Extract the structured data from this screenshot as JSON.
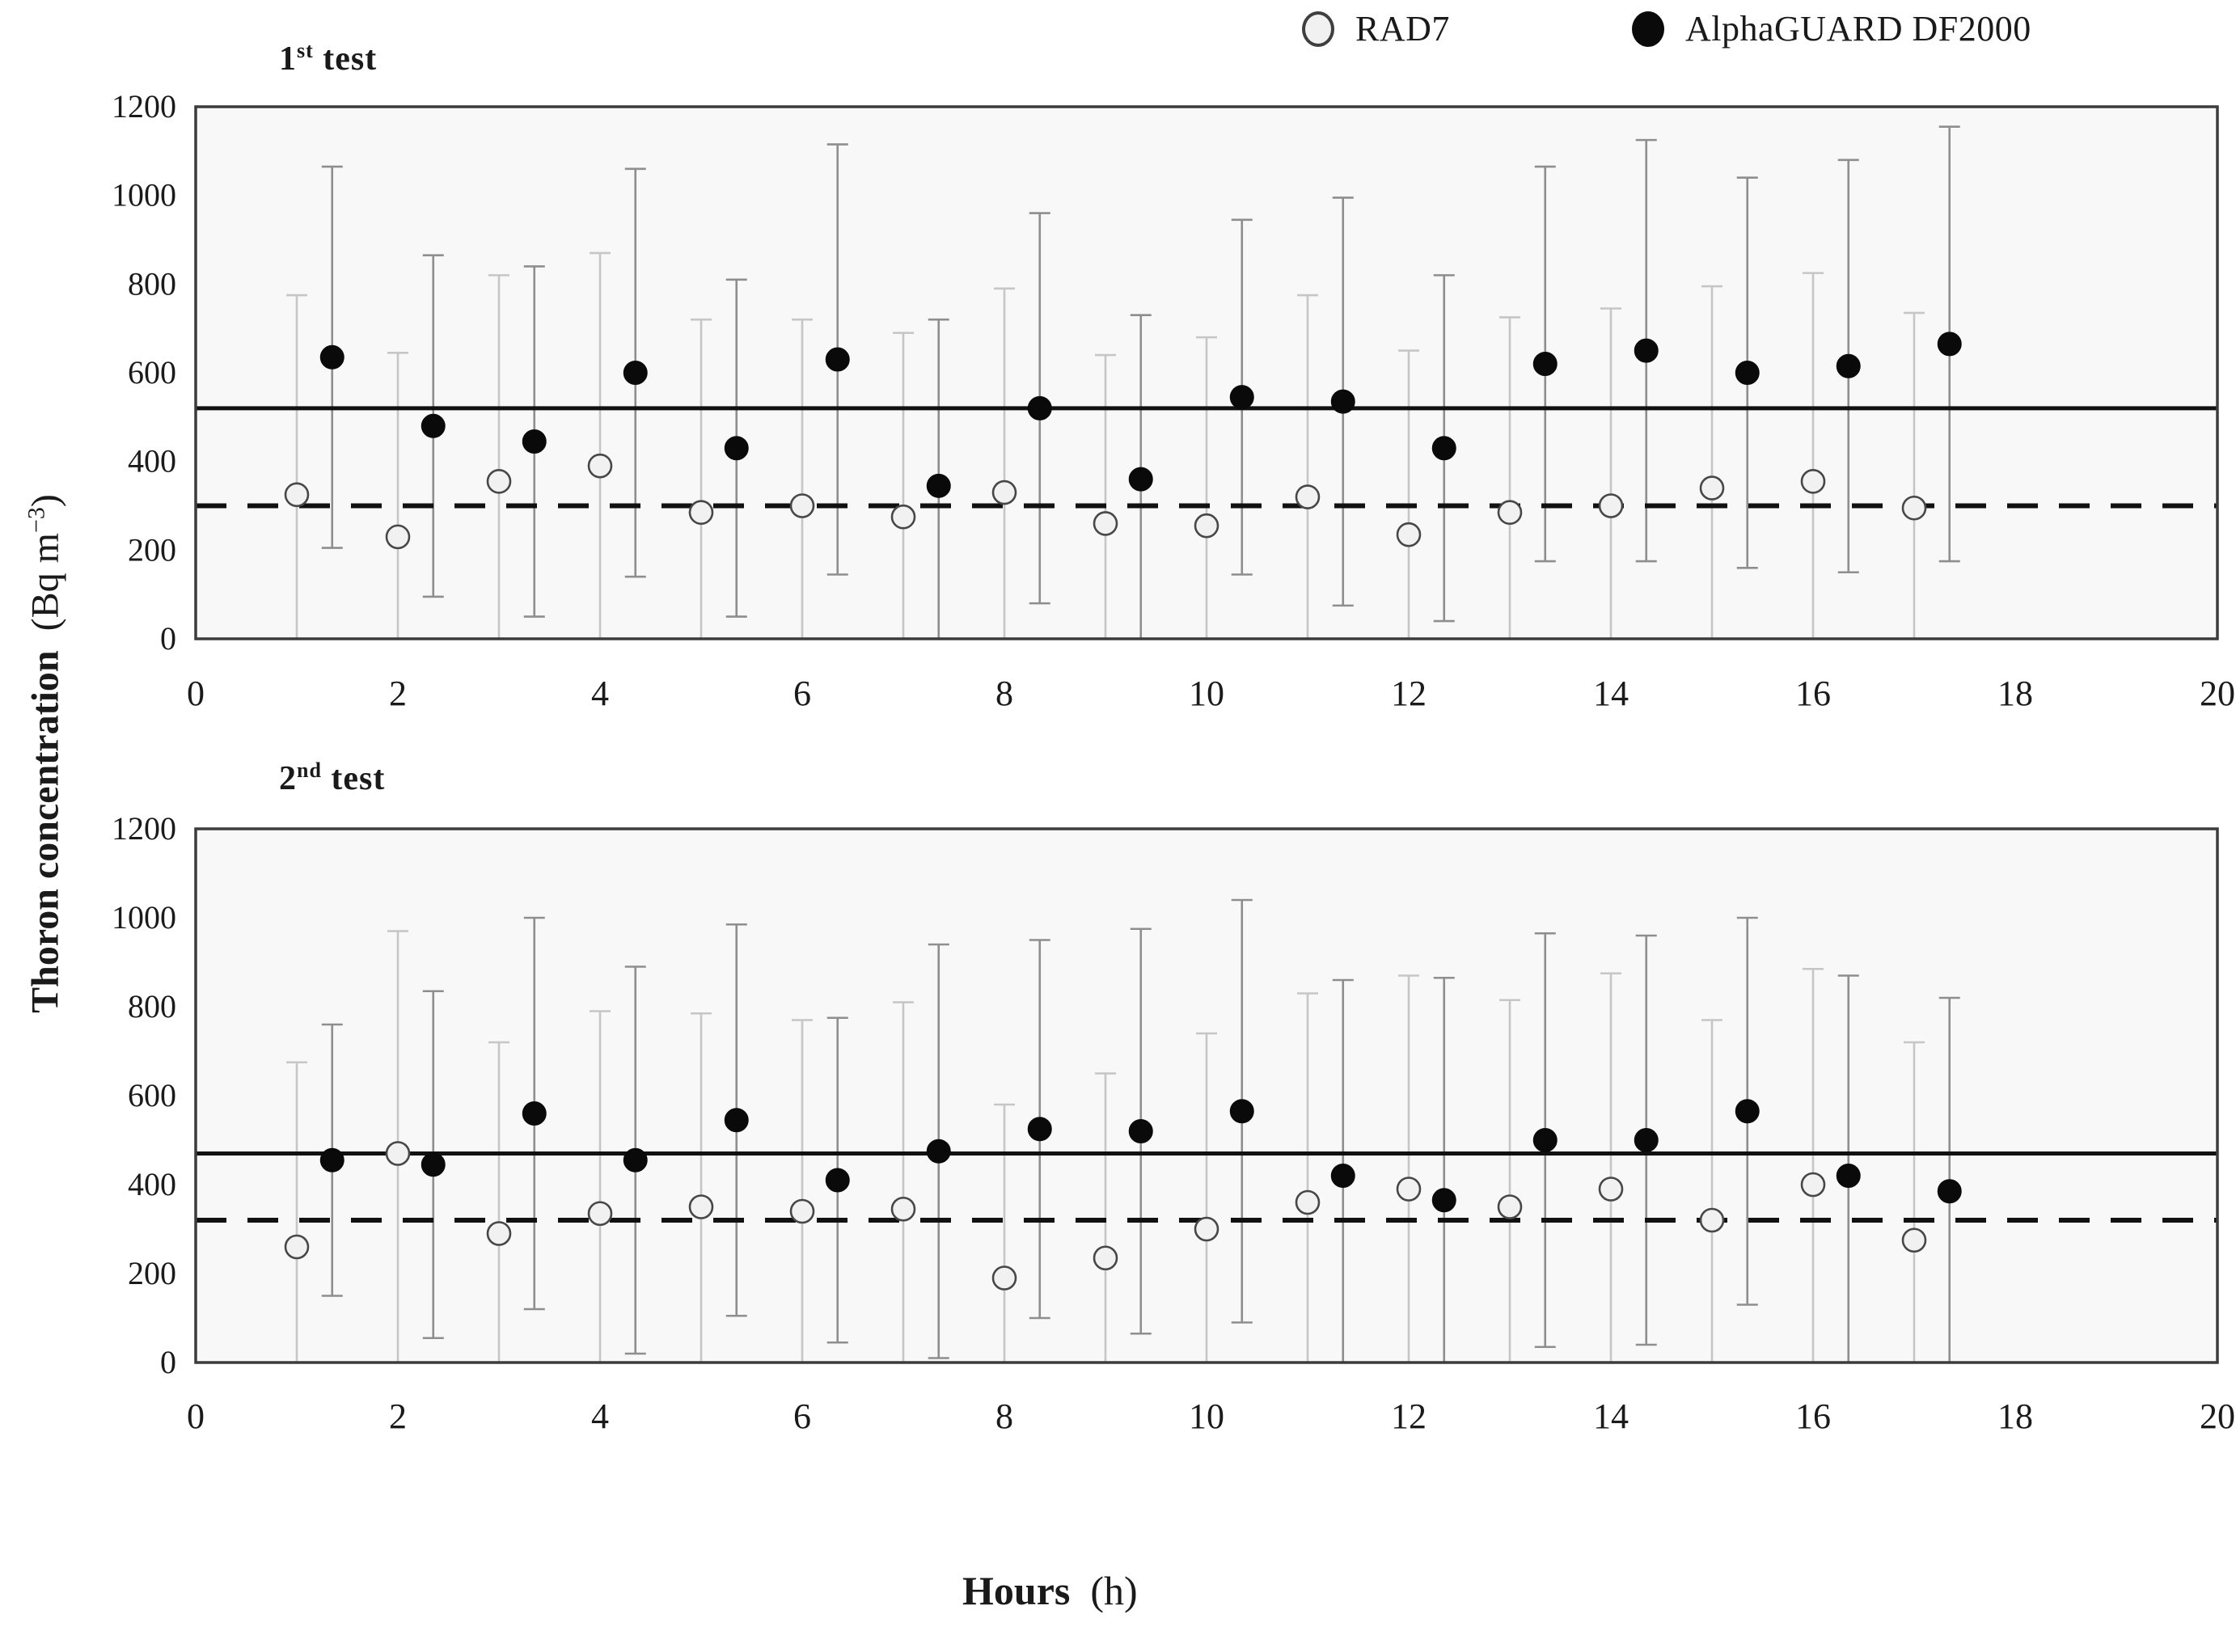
{
  "legend": {
    "items": [
      {
        "label": "RAD7",
        "marker": "open-circle-icon"
      },
      {
        "label": "AlphaGUARD DF2000",
        "marker": "filled-circle-icon"
      }
    ]
  },
  "axes": {
    "y_title_main": "Thoron concentration",
    "y_units_pre": "(Bq m",
    "y_units_sup": "−3",
    "y_units_post": ")",
    "x_title_main": "Hours",
    "x_title_units": "(h)"
  },
  "chart_data": [
    {
      "type": "scatter",
      "panel": "1st test",
      "title_number": "1",
      "title_ordinal": "st",
      "title_word": " test",
      "xlim": [
        0,
        20
      ],
      "ylim": [
        0,
        1200
      ],
      "x_ticks": [
        0,
        2,
        4,
        6,
        8,
        10,
        12,
        14,
        16,
        18,
        20
      ],
      "y_ticks": [
        0,
        200,
        400,
        600,
        800,
        1000,
        1200
      ],
      "grid": false,
      "legend_position": "top-right-above-figure",
      "reference_line_solid": 520,
      "reference_line_dashed": 300,
      "hours": [
        1,
        2,
        3,
        4,
        5,
        6,
        7,
        8,
        9,
        10,
        11,
        12,
        13,
        14,
        15,
        16,
        17
      ],
      "series": [
        {
          "name": "RAD7",
          "marker": "open-circle",
          "x_offset": 0,
          "values": [
            325,
            230,
            355,
            390,
            285,
            300,
            275,
            330,
            260,
            255,
            320,
            235,
            285,
            300,
            340,
            355,
            295
          ],
          "errors": [
            450,
            415,
            465,
            480,
            435,
            420,
            415,
            460,
            380,
            425,
            455,
            415,
            440,
            445,
            455,
            470,
            440
          ]
        },
        {
          "name": "AlphaGUARD DF2000",
          "marker": "filled-circle",
          "x_offset": 0.35,
          "values": [
            635,
            480,
            445,
            600,
            430,
            630,
            345,
            520,
            360,
            545,
            535,
            430,
            620,
            650,
            600,
            615,
            665
          ],
          "errors": [
            430,
            385,
            395,
            460,
            380,
            485,
            375,
            440,
            370,
            400,
            460,
            390,
            445,
            475,
            440,
            465,
            490
          ]
        }
      ]
    },
    {
      "type": "scatter",
      "panel": "2nd test",
      "title_number": "2",
      "title_ordinal": "nd",
      "title_word": " test",
      "xlim": [
        0,
        20
      ],
      "ylim": [
        0,
        1200
      ],
      "x_ticks": [
        0,
        2,
        4,
        6,
        8,
        10,
        12,
        14,
        16,
        18,
        20
      ],
      "y_ticks": [
        0,
        200,
        400,
        600,
        800,
        1000,
        1200
      ],
      "grid": false,
      "reference_line_solid": 470,
      "reference_line_dashed": 320,
      "hours": [
        1,
        2,
        3,
        4,
        5,
        6,
        7,
        8,
        9,
        10,
        11,
        12,
        13,
        14,
        15,
        16,
        17
      ],
      "series": [
        {
          "name": "RAD7",
          "marker": "open-circle",
          "x_offset": 0,
          "values": [
            260,
            470,
            290,
            335,
            350,
            340,
            345,
            190,
            235,
            300,
            360,
            390,
            350,
            390,
            320,
            400,
            275
          ],
          "errors": [
            415,
            500,
            430,
            455,
            435,
            430,
            465,
            390,
            415,
            440,
            470,
            480,
            465,
            485,
            450,
            485,
            445
          ]
        },
        {
          "name": "AlphaGUARD DF2000",
          "marker": "filled-circle",
          "x_offset": 0.35,
          "values": [
            455,
            445,
            560,
            455,
            545,
            410,
            475,
            525,
            520,
            565,
            420,
            365,
            500,
            500,
            565,
            420,
            385
          ],
          "errors": [
            305,
            390,
            440,
            435,
            440,
            365,
            465,
            425,
            455,
            475,
            440,
            500,
            465,
            460,
            435,
            450,
            435
          ]
        }
      ]
    }
  ],
  "style": {
    "plot_bg": "#f8f8f8",
    "border_color": "#3c3c3c",
    "ref_line_color": "#111111",
    "rad7_marker_fill": "#f1f1f1",
    "rad7_marker_stroke": "#474747",
    "alphaguard_marker_fill": "#0a0a0a",
    "rad7_errorbar_color": "#c6c6c6",
    "alphaguard_errorbar_color": "#8e8e8e",
    "tick_label_color": "#1a1a1a"
  }
}
